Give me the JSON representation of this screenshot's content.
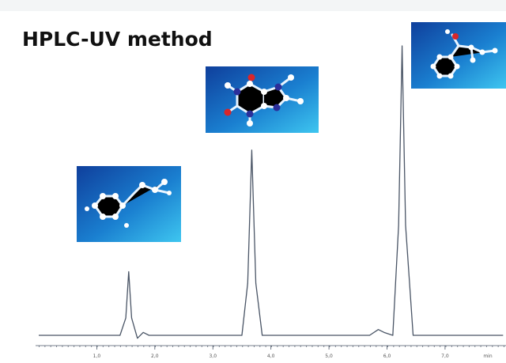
{
  "chart_data": {
    "type": "line",
    "title": "HPLC-UV method",
    "x_label": "min",
    "x": [
      0,
      1.4,
      1.5,
      1.55,
      1.6,
      1.7,
      1.8,
      1.9,
      2.0,
      3.5,
      3.6,
      3.67,
      3.74,
      3.85,
      5.7,
      5.85,
      5.95,
      6.1,
      6.2,
      6.26,
      6.32,
      6.45,
      8.0
    ],
    "series": [
      {
        "color": "#4a5566",
        "values": [
          0,
          0,
          6,
          22,
          6,
          -1,
          1,
          0,
          0,
          0,
          18,
          64,
          18,
          0,
          0,
          2,
          1,
          0,
          38,
          100,
          38,
          0,
          0
        ]
      }
    ],
    "xlim": [
      0,
      8.05
    ],
    "ylim": [
      0,
      100
    ],
    "xticks": [
      {
        "value": 1,
        "label": "1,0"
      },
      {
        "value": 2,
        "label": "2,0"
      },
      {
        "value": 3,
        "label": "3,0"
      },
      {
        "value": 4,
        "label": "4,0"
      },
      {
        "value": 5,
        "label": "5,0"
      },
      {
        "value": 6,
        "label": "6,0"
      },
      {
        "value": 7,
        "label": "7,0"
      }
    ]
  }
}
